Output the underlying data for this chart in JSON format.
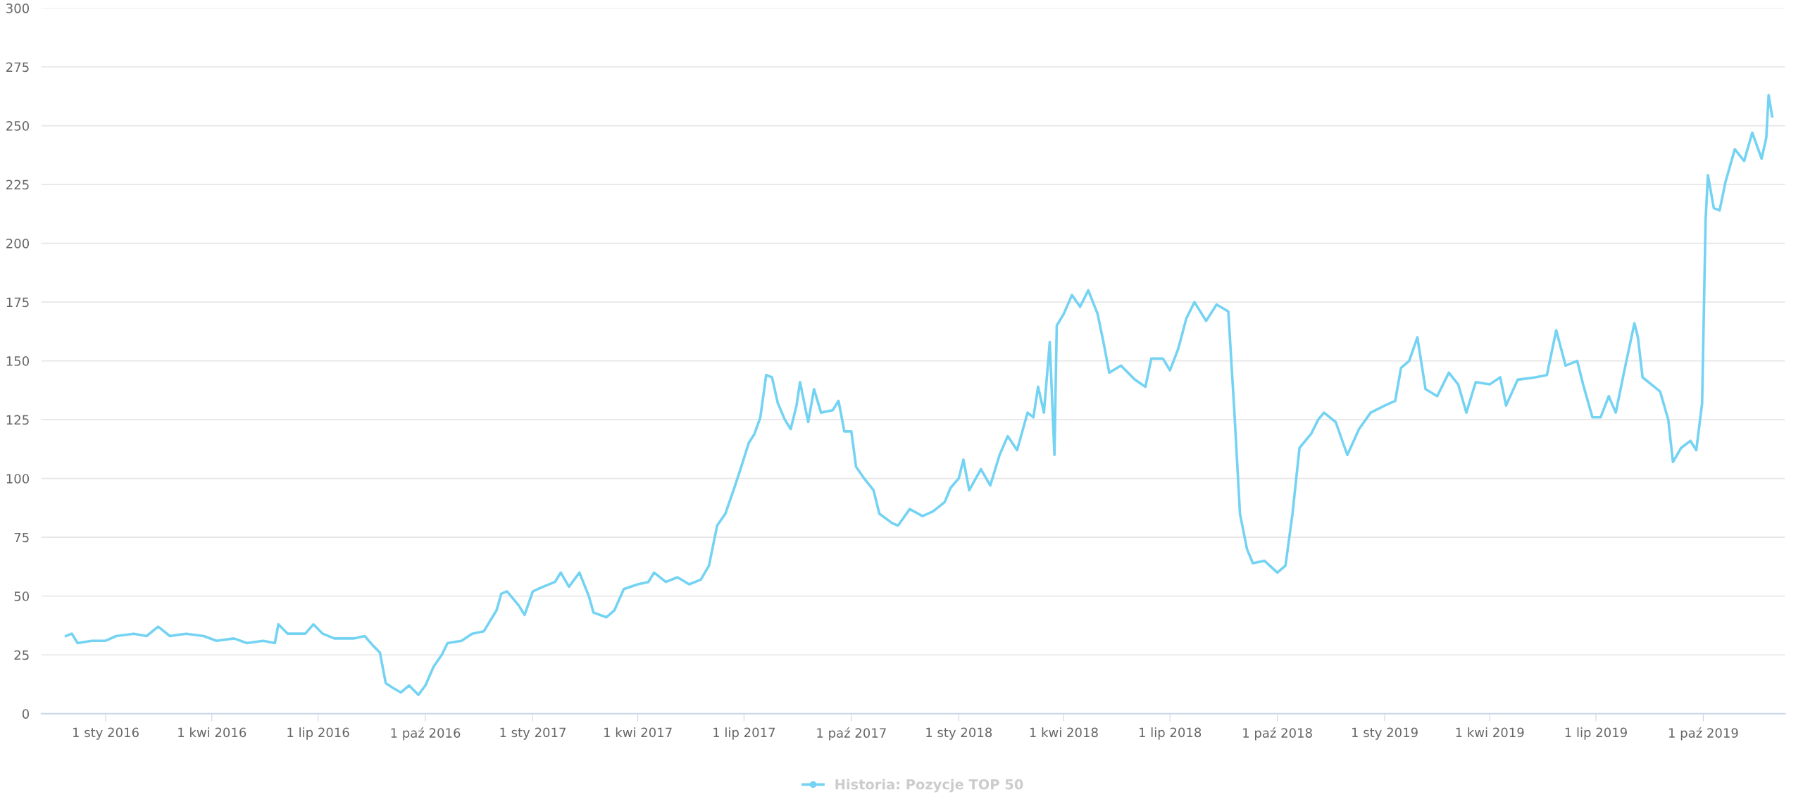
{
  "chart_data": {
    "type": "line",
    "grid": "y",
    "legend": "bottom",
    "marker": "none",
    "line_style": "solid",
    "xlim": [
      "2015-11-07",
      "2019-12-10"
    ],
    "xticks": [
      {
        "value": "2016-01-01",
        "label": "1 sty 2016"
      },
      {
        "value": "2016-04-01",
        "label": "1 kwi 2016"
      },
      {
        "value": "2016-07-01",
        "label": "1 lip 2016"
      },
      {
        "value": "2016-10-01",
        "label": "1 paź 2016"
      },
      {
        "value": "2017-01-01",
        "label": "1 sty 2017"
      },
      {
        "value": "2017-04-01",
        "label": "1 kwi 2017"
      },
      {
        "value": "2017-07-01",
        "label": "1 lip 2017"
      },
      {
        "value": "2017-10-01",
        "label": "1 paź 2017"
      },
      {
        "value": "2018-01-01",
        "label": "1 sty 2018"
      },
      {
        "value": "2018-04-01",
        "label": "1 kwi 2018"
      },
      {
        "value": "2018-07-01",
        "label": "1 lip 2018"
      },
      {
        "value": "2018-10-01",
        "label": "1 paź 2018"
      },
      {
        "value": "2019-01-01",
        "label": "1 sty 2019"
      },
      {
        "value": "2019-04-01",
        "label": "1 kwi 2019"
      },
      {
        "value": "2019-07-01",
        "label": "1 lip 2019"
      },
      {
        "value": "2019-10-01",
        "label": "1 paź 2019"
      }
    ],
    "ylim": [
      0,
      300
    ],
    "yticks": [
      0,
      25,
      50,
      75,
      100,
      125,
      150,
      175,
      200,
      225,
      250,
      275,
      300
    ],
    "series": [
      {
        "name": "Historia: Pozycje TOP 50",
        "color": "#74d3f3",
        "x": [
          "2015-11-28",
          "2015-12-03",
          "2015-12-08",
          "2015-12-20",
          "2016-01-01",
          "2016-01-10",
          "2016-01-25",
          "2016-02-05",
          "2016-02-15",
          "2016-02-25",
          "2016-03-10",
          "2016-03-25",
          "2016-04-05",
          "2016-04-20",
          "2016-05-01",
          "2016-05-15",
          "2016-05-25",
          "2016-05-28",
          "2016-06-05",
          "2016-06-20",
          "2016-06-27",
          "2016-07-05",
          "2016-07-15",
          "2016-08-01",
          "2016-08-10",
          "2016-08-17",
          "2016-08-23",
          "2016-08-28",
          "2016-09-03",
          "2016-09-10",
          "2016-09-17",
          "2016-09-25",
          "2016-10-01",
          "2016-10-08",
          "2016-10-15",
          "2016-10-20",
          "2016-11-01",
          "2016-11-10",
          "2016-11-20",
          "2016-12-01",
          "2016-12-05",
          "2016-12-10",
          "2016-12-20",
          "2016-12-25",
          "2017-01-01",
          "2017-01-10",
          "2017-01-20",
          "2017-01-25",
          "2017-02-01",
          "2017-02-10",
          "2017-02-18",
          "2017-02-22",
          "2017-03-05",
          "2017-03-12",
          "2017-03-20",
          "2017-04-01",
          "2017-04-10",
          "2017-04-15",
          "2017-04-25",
          "2017-05-05",
          "2017-05-15",
          "2017-05-25",
          "2017-06-01",
          "2017-06-08",
          "2017-06-15",
          "2017-06-22",
          "2017-06-28",
          "2017-07-05",
          "2017-07-10",
          "2017-07-15",
          "2017-07-20",
          "2017-07-25",
          "2017-07-30",
          "2017-08-05",
          "2017-08-10",
          "2017-08-15",
          "2017-08-18",
          "2017-08-25",
          "2017-08-30",
          "2017-09-05",
          "2017-09-15",
          "2017-09-20",
          "2017-09-25",
          "2017-10-01",
          "2017-10-05",
          "2017-10-12",
          "2017-10-20",
          "2017-10-25",
          "2017-11-05",
          "2017-11-10",
          "2017-11-20",
          "2017-12-01",
          "2017-12-10",
          "2017-12-20",
          "2017-12-25",
          "2018-01-01",
          "2018-01-05",
          "2018-01-10",
          "2018-01-20",
          "2018-01-28",
          "2018-02-05",
          "2018-02-12",
          "2018-02-20",
          "2018-03-01",
          "2018-03-06",
          "2018-03-10",
          "2018-03-15",
          "2018-03-20",
          "2018-03-24",
          "2018-03-26",
          "2018-04-01",
          "2018-04-08",
          "2018-04-15",
          "2018-04-22",
          "2018-04-30",
          "2018-05-05",
          "2018-05-10",
          "2018-05-20",
          "2018-06-01",
          "2018-06-10",
          "2018-06-15",
          "2018-06-25",
          "2018-07-01",
          "2018-07-08",
          "2018-07-15",
          "2018-07-22",
          "2018-08-01",
          "2018-08-10",
          "2018-08-20",
          "2018-08-25",
          "2018-08-30",
          "2018-09-05",
          "2018-09-10",
          "2018-09-20",
          "2018-10-01",
          "2018-10-08",
          "2018-10-14",
          "2018-10-20",
          "2018-10-30",
          "2018-11-05",
          "2018-11-10",
          "2018-11-20",
          "2018-11-30",
          "2018-12-10",
          "2018-12-20",
          "2019-01-01",
          "2019-01-10",
          "2019-01-15",
          "2019-01-22",
          "2019-01-29",
          "2019-02-05",
          "2019-02-15",
          "2019-02-25",
          "2019-03-05",
          "2019-03-12",
          "2019-03-20",
          "2019-04-01",
          "2019-04-10",
          "2019-04-15",
          "2019-04-25",
          "2019-05-10",
          "2019-05-20",
          "2019-05-28",
          "2019-06-05",
          "2019-06-15",
          "2019-06-20",
          "2019-06-28",
          "2019-07-05",
          "2019-07-12",
          "2019-07-18",
          "2019-07-25",
          "2019-08-03",
          "2019-08-06",
          "2019-08-10",
          "2019-08-20",
          "2019-08-25",
          "2019-09-01",
          "2019-09-05",
          "2019-09-12",
          "2019-09-20",
          "2019-09-25",
          "2019-09-30",
          "2019-10-03",
          "2019-10-05",
          "2019-10-10",
          "2019-10-15",
          "2019-10-20",
          "2019-10-28",
          "2019-11-05",
          "2019-11-12",
          "2019-11-20",
          "2019-11-24",
          "2019-11-26",
          "2019-11-29"
        ],
        "values": [
          33,
          34,
          30,
          31,
          31,
          33,
          34,
          33,
          37,
          33,
          34,
          33,
          31,
          32,
          30,
          31,
          30,
          38,
          34,
          34,
          38,
          34,
          32,
          32,
          33,
          29,
          26,
          13,
          11,
          9,
          12,
          8,
          12,
          20,
          25,
          30,
          31,
          34,
          35,
          44,
          51,
          52,
          46,
          42,
          52,
          54,
          56,
          60,
          54,
          60,
          50,
          43,
          41,
          44,
          53,
          55,
          56,
          60,
          56,
          58,
          55,
          57,
          63,
          80,
          85,
          95,
          104,
          115,
          119,
          126,
          144,
          143,
          132,
          125,
          121,
          131,
          141,
          124,
          138,
          128,
          129,
          133,
          120,
          120,
          105,
          100,
          95,
          85,
          81,
          80,
          87,
          84,
          86,
          90,
          96,
          100,
          108,
          95,
          104,
          97,
          110,
          118,
          112,
          128,
          126,
          139,
          128,
          158,
          110,
          165,
          170,
          178,
          173,
          180,
          170,
          158,
          145,
          148,
          142,
          139,
          151,
          151,
          146,
          155,
          168,
          175,
          167,
          174,
          171,
          130,
          85,
          70,
          64,
          65,
          60,
          63,
          85,
          113,
          119,
          125,
          128,
          124,
          110,
          121,
          128,
          131,
          133,
          147,
          150,
          160,
          138,
          135,
          145,
          140,
          128,
          141,
          140,
          143,
          131,
          142,
          143,
          144,
          163,
          148,
          150,
          140,
          126,
          126,
          135,
          128,
          145,
          166,
          160,
          143,
          139,
          137,
          125,
          107,
          113,
          116,
          112,
          132,
          210,
          229,
          215,
          214,
          226,
          240,
          235,
          247,
          236,
          245,
          263,
          254
        ]
      }
    ]
  }
}
